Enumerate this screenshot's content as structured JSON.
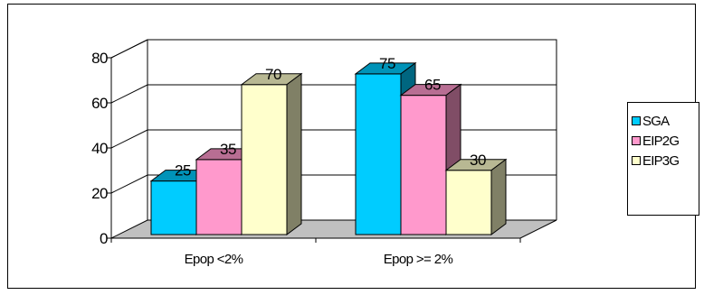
{
  "chart_data": {
    "type": "bar",
    "style": "3d-clustered-column",
    "title": "",
    "xlabel": "",
    "ylabel": "",
    "categories": [
      "Epop <2%",
      "Epop >= 2%"
    ],
    "series": [
      {
        "name": "SGA",
        "values": [
          25,
          75
        ],
        "color": "#00CCFF"
      },
      {
        "name": "EIP2G",
        "values": [
          35,
          65
        ],
        "color": "#FF99CC"
      },
      {
        "name": "EIP3G",
        "values": [
          70,
          30
        ],
        "color": "#FFFFCC"
      }
    ],
    "ylim": [
      0,
      80
    ],
    "yticks": [
      "0",
      "20",
      "40",
      "60",
      "80"
    ],
    "data_labels": true,
    "grid": true,
    "legend": "right",
    "floor_color": "#C0C0C0"
  }
}
